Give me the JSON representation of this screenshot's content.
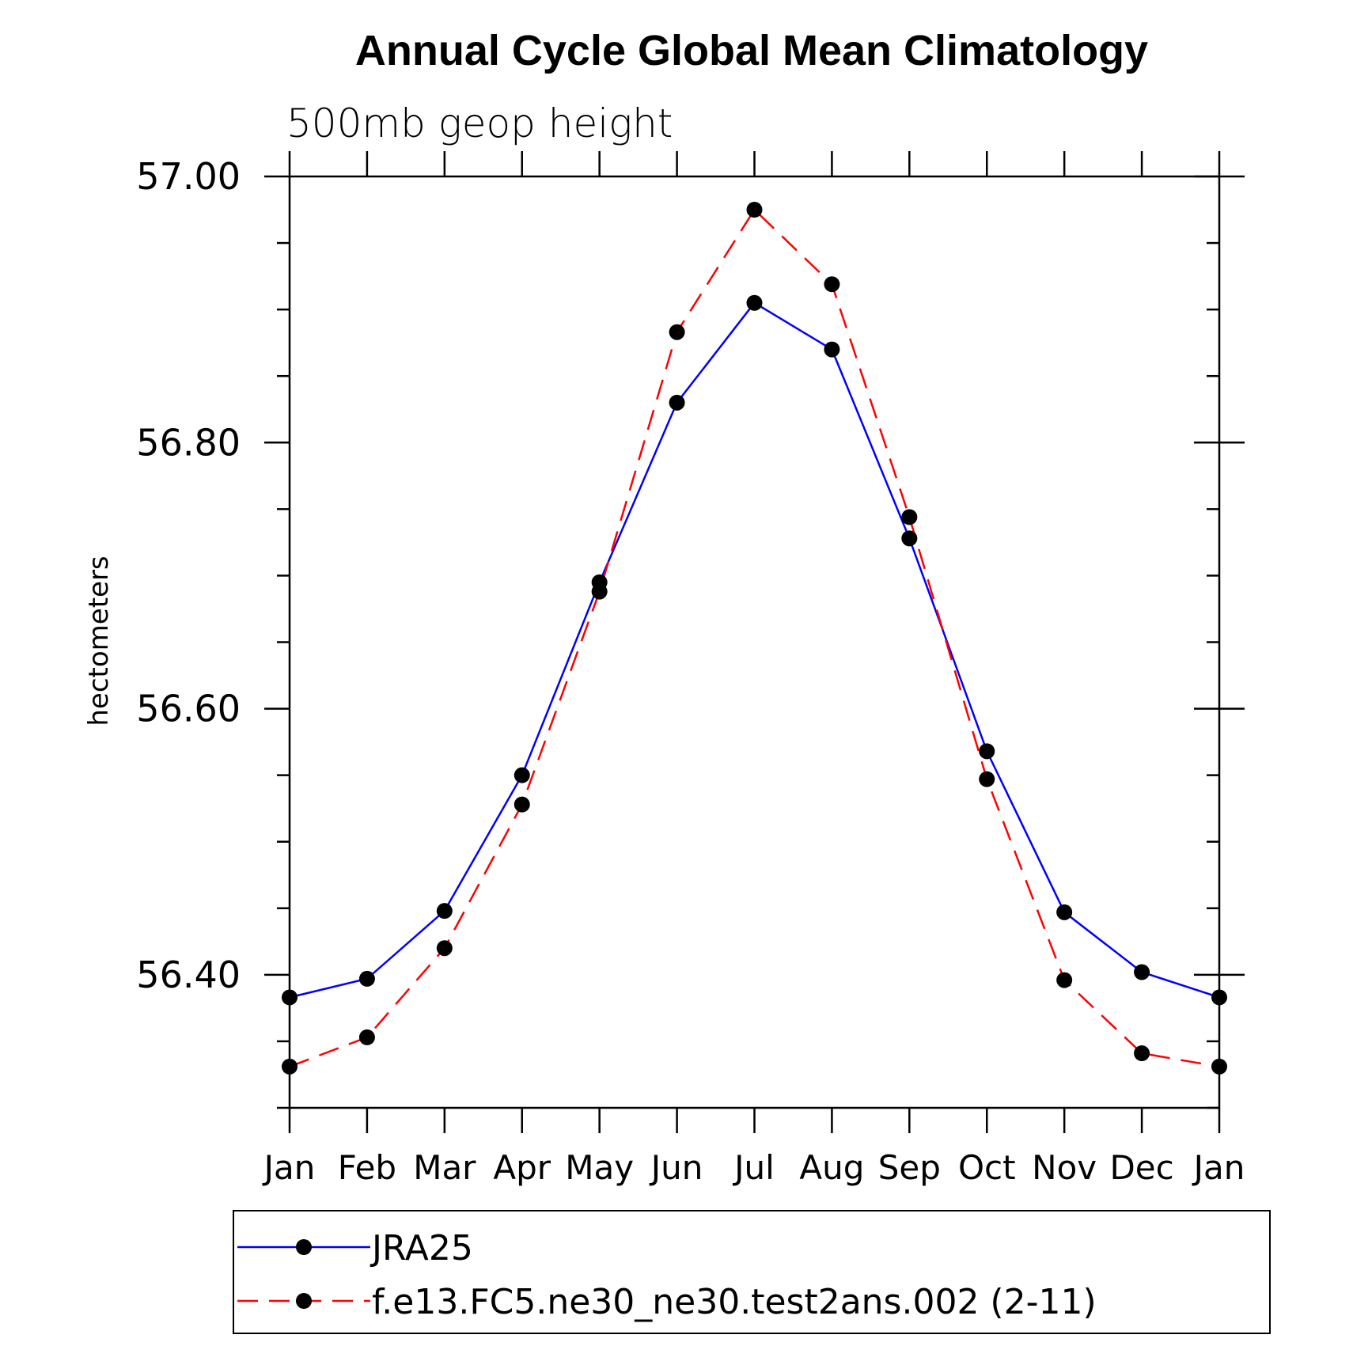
{
  "chart_data": {
    "type": "line",
    "title": "Annual Cycle Global Mean Climatology",
    "subtitle": "500mb geop height",
    "xlabel": "",
    "ylabel": "hectometers",
    "categories": [
      "Jan",
      "Feb",
      "Mar",
      "Apr",
      "May",
      "Jun",
      "Jul",
      "Aug",
      "Sep",
      "Oct",
      "Nov",
      "Dec",
      "Jan"
    ],
    "ylim": [
      56.3,
      57.0
    ],
    "y_major_ticks": [
      56.4,
      56.6,
      56.8,
      57.0
    ],
    "y_tick_labels": [
      "56.40",
      "56.60",
      "56.80",
      "57.00"
    ],
    "y_minor_step": 0.05,
    "grid": false,
    "legend_position": "bottom",
    "series": [
      {
        "name": "JRA25",
        "color": "#0000ff",
        "dash": "solid",
        "marker": "filled-circle",
        "values": [
          56.383,
          56.397,
          56.448,
          56.55,
          56.695,
          56.83,
          56.905,
          56.87,
          56.728,
          56.568,
          56.447,
          56.402,
          56.383
        ]
      },
      {
        "name": "f.e13.FC5.ne30_ne30.test2ans.002 (2-11)",
        "color": "#ff0000",
        "dash": "dashed",
        "marker": "filled-circle",
        "values": [
          56.331,
          56.353,
          56.42,
          56.528,
          56.688,
          56.883,
          56.975,
          56.919,
          56.744,
          56.547,
          56.396,
          56.341,
          56.331
        ]
      }
    ]
  }
}
